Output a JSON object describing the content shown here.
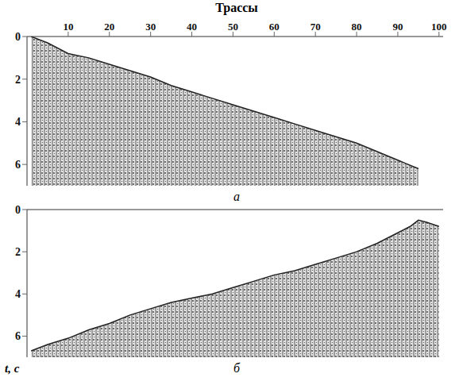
{
  "chart_data": [
    {
      "type": "area",
      "title": "Трассы",
      "annotation": "а",
      "x": [
        1,
        5,
        10,
        15,
        20,
        25,
        30,
        35,
        40,
        45,
        50,
        55,
        60,
        65,
        70,
        75,
        80,
        85,
        90,
        95
      ],
      "values": [
        0,
        0.3,
        0.8,
        1.0,
        1.3,
        1.6,
        1.9,
        2.3,
        2.6,
        2.9,
        3.2,
        3.5,
        3.8,
        4.1,
        4.4,
        4.7,
        5.0,
        5.4,
        5.8,
        6.2
      ],
      "color": "#222222",
      "xlim": [
        0,
        101
      ],
      "xticks": [
        10,
        20,
        30,
        40,
        50,
        60,
        70,
        80,
        90,
        100
      ],
      "ylim": [
        0,
        7
      ],
      "yticks": [
        0,
        2,
        4,
        6
      ],
      "grid": false
    },
    {
      "type": "area",
      "annotation": "б",
      "ylabel": "t, с",
      "x": [
        1,
        5,
        10,
        15,
        20,
        25,
        30,
        35,
        40,
        45,
        50,
        55,
        60,
        65,
        70,
        75,
        80,
        85,
        90,
        93,
        95,
        97,
        100
      ],
      "values": [
        6.7,
        6.4,
        6.1,
        5.7,
        5.4,
        5.0,
        4.7,
        4.4,
        4.2,
        4.0,
        3.7,
        3.4,
        3.1,
        2.9,
        2.6,
        2.3,
        2.0,
        1.6,
        1.1,
        0.8,
        0.5,
        0.6,
        0.8
      ],
      "color": "#222222",
      "xlim": [
        0,
        101
      ],
      "ylim": [
        0,
        7
      ],
      "yticks": [
        0,
        2,
        4,
        6
      ],
      "tick_labels": "y",
      "grid": false
    }
  ]
}
